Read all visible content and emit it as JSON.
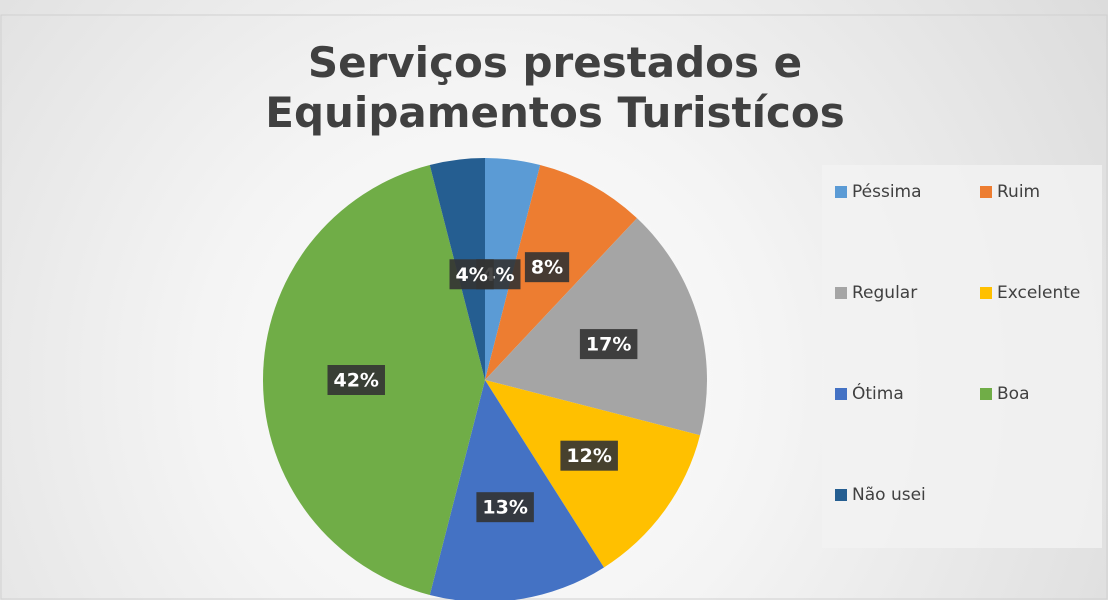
{
  "chart_data": {
    "type": "pie",
    "title": "Serviços prestados e Equipamentos Turistícos",
    "categories": [
      "Péssima",
      "Ruim",
      "Regular",
      "Excelente",
      "Ótima",
      "Boa",
      "Não usei"
    ],
    "values": [
      4,
      8,
      17,
      12,
      13,
      42,
      4
    ],
    "value_labels": [
      "4%",
      "8%",
      "17%",
      "12%",
      "13%",
      "42%",
      "4%"
    ],
    "colors": [
      "#5B9BD5",
      "#ED7D31",
      "#A5A5A5",
      "#FFC000",
      "#4472C4",
      "#70AD47",
      "#255E91"
    ],
    "legend": "right"
  }
}
